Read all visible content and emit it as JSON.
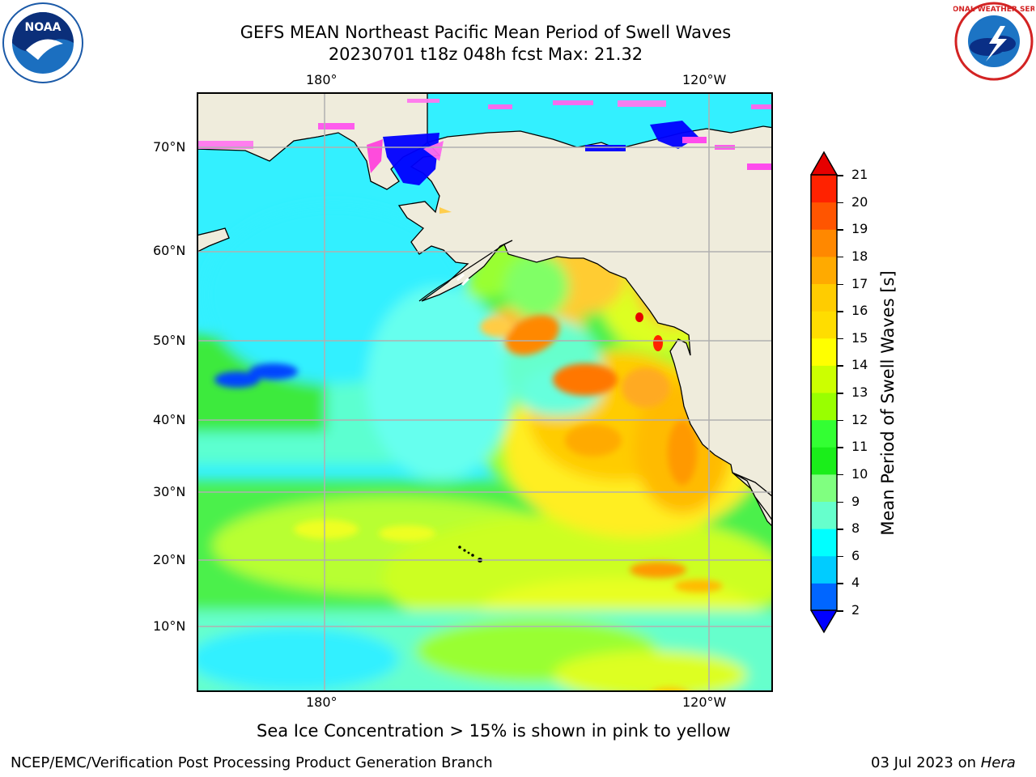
{
  "header": {
    "title_line1": "GEFS MEAN Northeast Pacific Mean Period of Swell Waves",
    "title_line2": "20230701 t18z 048h fcst   Max: 21.32",
    "left_logo": "noaa-logo",
    "right_logo": "national-weather-service-logo"
  },
  "map": {
    "projection": "platecarree",
    "lon_ticks_top": [
      "180°",
      "120°W"
    ],
    "lon_ticks_bottom": [
      "180°",
      "120°W"
    ],
    "lat_ticks": [
      "70°N",
      "60°N",
      "50°N",
      "40°N",
      "30°N",
      "20°N",
      "10°N"
    ],
    "land_color": "#efecdc",
    "grid": true
  },
  "colorbar": {
    "label": "Mean Period of Swell Waves [s]",
    "ticks": [
      "21",
      "20",
      "19",
      "18",
      "17",
      "16",
      "15",
      "14",
      "13",
      "12",
      "11",
      "10",
      "9",
      "8",
      "6",
      "4",
      "2"
    ],
    "colors": [
      "#0000ff",
      "#0066ff",
      "#00ccff",
      "#00ffff",
      "#66ffcc",
      "#80ff80",
      "#1aee1a",
      "#33ff33",
      "#99ff00",
      "#ccff00",
      "#ffff00",
      "#ffdd00",
      "#ffcc00",
      "#ffaa00",
      "#ff8800",
      "#ff5500",
      "#ff2200",
      "#e60000"
    ]
  },
  "footer": {
    "note": "Sea Ice Concentration > 15% is shown in pink to yellow",
    "credit": "NCEP/EMC/Verification Post Processing Product Generation Branch",
    "date_prefix": "03 Jul 2023 on ",
    "date_machine": "Hera"
  }
}
